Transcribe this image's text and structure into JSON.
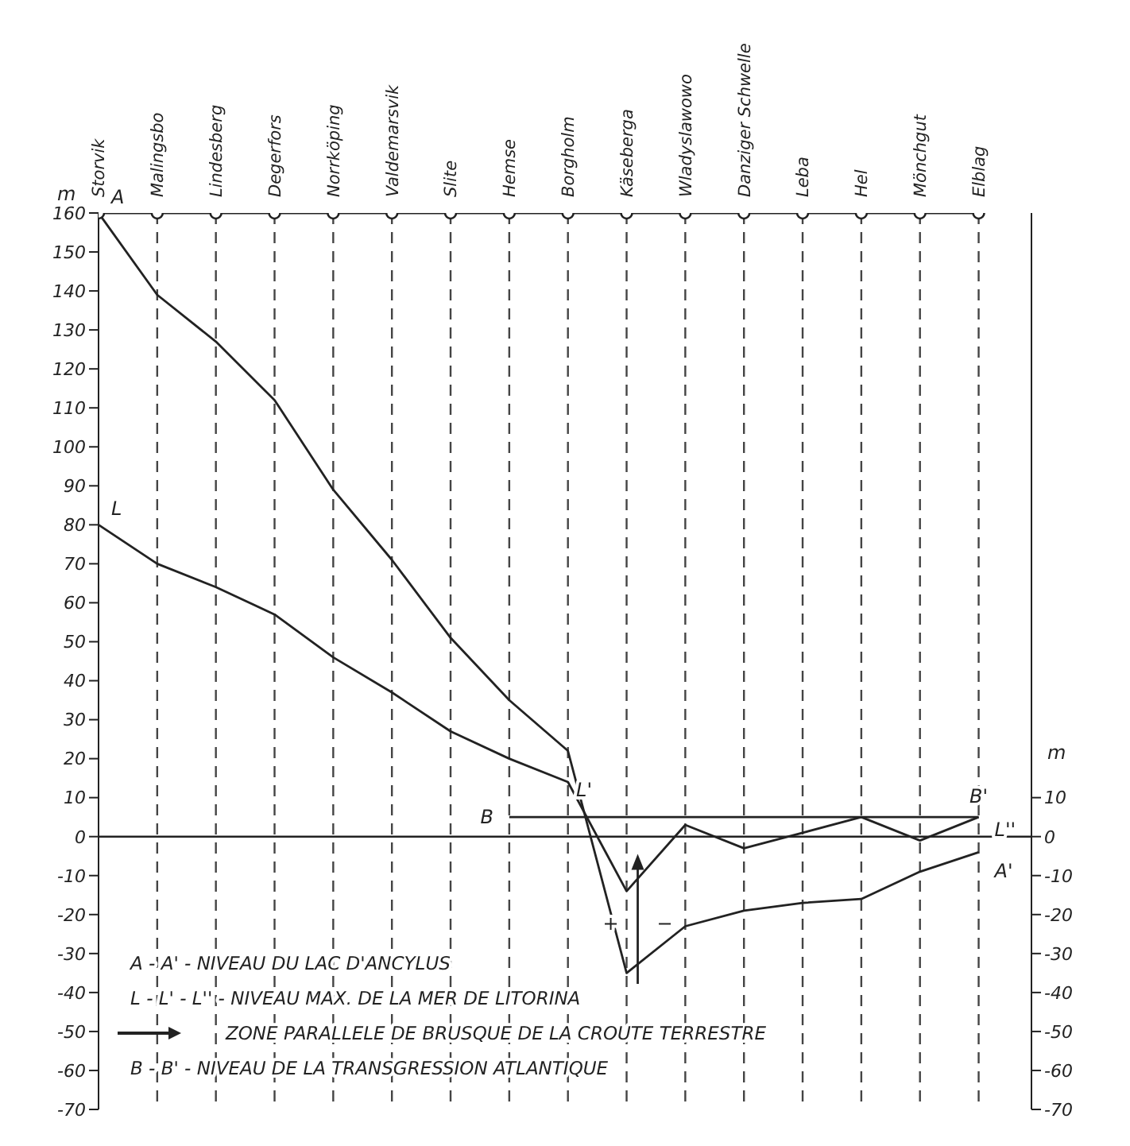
{
  "chart_data": {
    "type": "line",
    "ylabel": "m",
    "y2label": "m",
    "categories": [
      "Storvik",
      "Malingsbo",
      "Lindesberg",
      "Degerfors",
      "Norrköping",
      "Valdemarsvik",
      "Slite",
      "Hemse",
      "Borgholm",
      "Käseberga",
      "Wladyslawowo",
      "Danziger Schwelle",
      "Leba",
      "Hel",
      "Mönchgut",
      "Elblag"
    ],
    "ylim": [
      -70,
      160
    ],
    "yticks": [
      -70,
      -60,
      -50,
      -40,
      -30,
      -20,
      -10,
      0,
      10,
      20,
      30,
      40,
      50,
      60,
      70,
      80,
      90,
      100,
      110,
      120,
      130,
      140,
      150,
      160
    ],
    "y2lim": [
      -70,
      160
    ],
    "y2ticks": [
      -70,
      -60,
      -50,
      -40,
      -30,
      -20,
      -10,
      0,
      10
    ],
    "series": [
      {
        "color": "#222222",
        "marker": "circle",
        "values": [
          160,
          160,
          160,
          160,
          160,
          160,
          160,
          160,
          160,
          160,
          160,
          160,
          160,
          160,
          160,
          160
        ]
      },
      {
        "color": "#222222",
        "marker": "none",
        "values": [
          160,
          139,
          127,
          112,
          89,
          71,
          51,
          35,
          22,
          -35,
          -23,
          -19,
          -17,
          -16,
          -9,
          -4
        ]
      },
      {
        "color": "#222222",
        "marker": "none",
        "values": [
          80,
          70,
          64,
          57,
          46,
          37,
          27,
          20,
          14,
          -14,
          3,
          -3,
          1,
          5,
          -1,
          5
        ]
      },
      {
        "color": "#222222",
        "marker": "none",
        "values": [
          null,
          null,
          null,
          null,
          null,
          null,
          null,
          5,
          5,
          5,
          5,
          5,
          5,
          5,
          5,
          5
        ]
      }
    ],
    "ref_lines": [
      {
        "axis": "y",
        "value": 0,
        "color": "#222222",
        "line_style": "solid"
      },
      {
        "axis": "x",
        "value": "Malingsbo",
        "color": "#444444",
        "line_style": "dashed"
      },
      {
        "axis": "x",
        "value": "Lindesberg",
        "color": "#444444",
        "line_style": "dashed"
      },
      {
        "axis": "x",
        "value": "Degerfors",
        "color": "#444444",
        "line_style": "dashed"
      },
      {
        "axis": "x",
        "value": "Norrköping",
        "color": "#444444",
        "line_style": "dashed"
      },
      {
        "axis": "x",
        "value": "Valdemarsvik",
        "color": "#444444",
        "line_style": "dashed"
      },
      {
        "axis": "x",
        "value": "Slite",
        "color": "#444444",
        "line_style": "dashed"
      },
      {
        "axis": "x",
        "value": "Hemse",
        "color": "#444444",
        "line_style": "dashed"
      },
      {
        "axis": "x",
        "value": "Borgholm",
        "color": "#444444",
        "line_style": "dashed"
      },
      {
        "axis": "x",
        "value": "Käseberga",
        "color": "#444444",
        "line_style": "dashed"
      },
      {
        "axis": "x",
        "value": "Wladyslawowo",
        "color": "#444444",
        "line_style": "dashed"
      },
      {
        "axis": "x",
        "value": "Danziger Schwelle",
        "color": "#444444",
        "line_style": "dashed"
      },
      {
        "axis": "x",
        "value": "Leba",
        "color": "#444444",
        "line_style": "dashed"
      },
      {
        "axis": "x",
        "value": "Hel",
        "color": "#444444",
        "line_style": "dashed"
      },
      {
        "axis": "x",
        "value": "Mönchgut",
        "color": "#444444",
        "line_style": "dashed"
      },
      {
        "axis": "x",
        "value": "Elblag",
        "color": "#444444",
        "line_style": "dashed"
      }
    ],
    "annotations": [
      {
        "text": "A",
        "x": "Storvik",
        "y": 160
      },
      {
        "text": "L",
        "x": "Storvik",
        "y": 80
      },
      {
        "text": "B",
        "x": "Hemse",
        "y": 5
      },
      {
        "text": "B'",
        "x": "Elblag",
        "y": 5
      },
      "A'",
      "L''",
      "L'",
      "+",
      "−",
      "A - A' - NIVEAU DU LAC D'ANCYLUS",
      "L - L' - L'' - NIVEAU MAX. DE LA MER DE LITORINA",
      "ZONE PARALLELE DE BRUSQUE DE LA CROUTE TERRESTRE",
      "B - B' - NIVEAU DE LA TRANSGRESSION ATLANTIQUE"
    ]
  }
}
